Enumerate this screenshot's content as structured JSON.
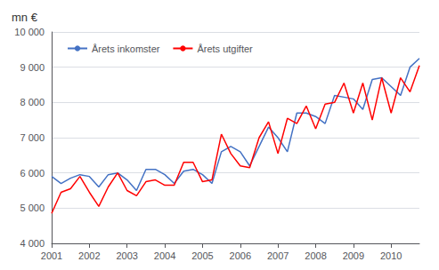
{
  "chart_data": {
    "type": "line",
    "title": "mn €",
    "x": [
      2001,
      2001.25,
      2001.5,
      2001.75,
      2002,
      2002.25,
      2002.5,
      2002.75,
      2003,
      2003.25,
      2003.5,
      2003.75,
      2004,
      2004.25,
      2004.5,
      2004.75,
      2005,
      2005.25,
      2005.5,
      2005.75,
      2006,
      2006.25,
      2006.5,
      2006.75,
      2007,
      2007.25,
      2007.5,
      2007.75,
      2008,
      2008.25,
      2008.5,
      2008.75,
      2009,
      2009.25,
      2009.5,
      2009.75,
      2010,
      2010.25,
      2010.5,
      2010.75
    ],
    "series": [
      {
        "name": "Årets inkomster",
        "color": "#4472C4",
        "values": [
          5900,
          5700,
          5850,
          5950,
          5900,
          5600,
          5950,
          6000,
          5800,
          5500,
          6100,
          6100,
          5950,
          5700,
          6050,
          6100,
          5950,
          5700,
          6600,
          6750,
          6600,
          6200,
          6750,
          7300,
          7000,
          6600,
          7700,
          7700,
          7600,
          7400,
          8200,
          8150,
          8100,
          7800,
          8650,
          8700,
          8450,
          8200,
          9000,
          9250
        ]
      },
      {
        "name": "Årets utgifter",
        "color": "#FF0000",
        "values": [
          4850,
          5450,
          5550,
          5900,
          5450,
          5050,
          5600,
          6000,
          5500,
          5350,
          5750,
          5800,
          5650,
          5650,
          6300,
          6300,
          5750,
          5800,
          7100,
          6550,
          6200,
          6150,
          7000,
          7450,
          6550,
          7550,
          7400,
          7900,
          7250,
          7950,
          8000,
          8550,
          7700,
          8550,
          7500,
          8700,
          7700,
          8700,
          8300,
          9050
        ]
      }
    ],
    "xlim": [
      2001,
      2010.75
    ],
    "xticks": [
      2001,
      2002,
      2003,
      2004,
      2005,
      2006,
      2007,
      2008,
      2009,
      2010
    ],
    "ylim": [
      4000,
      10000
    ],
    "yticks": [
      {
        "value": 4000,
        "label": "4 000"
      },
      {
        "value": 5000,
        "label": "5 000"
      },
      {
        "value": 6000,
        "label": "6 000"
      },
      {
        "value": 7000,
        "label": "7 000"
      },
      {
        "value": 8000,
        "label": "8 000"
      },
      {
        "value": 9000,
        "label": "9 000"
      },
      {
        "value": 10000,
        "label": "10 000"
      }
    ],
    "grid": true,
    "legend": "upper left"
  }
}
